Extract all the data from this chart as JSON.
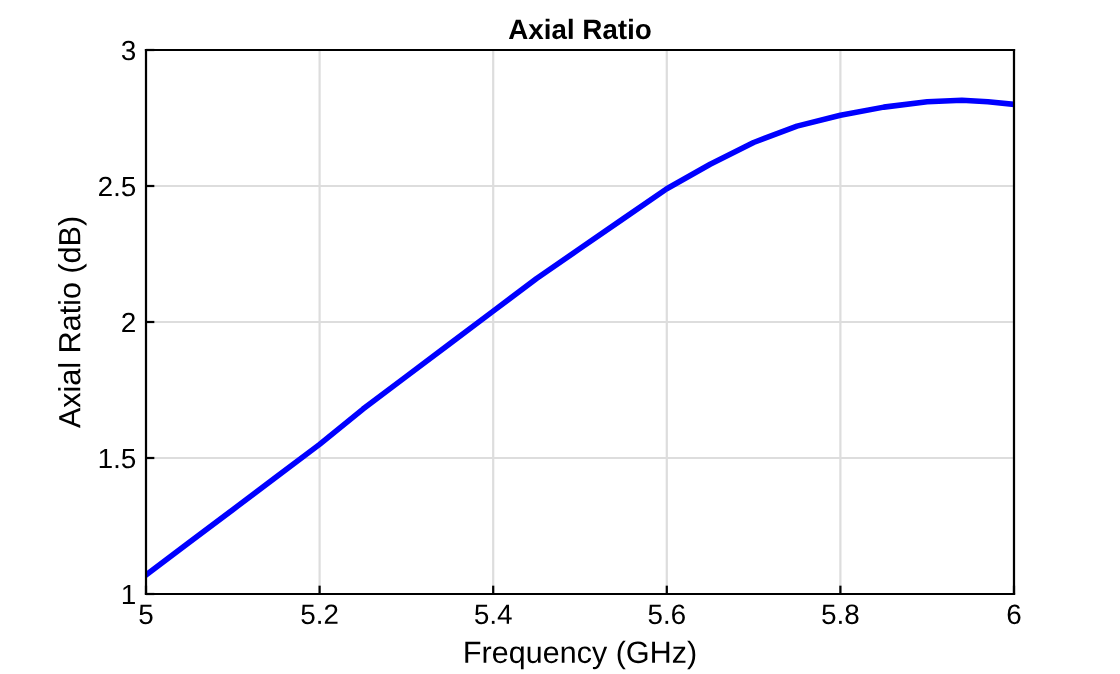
{
  "chart_data": {
    "type": "line",
    "title": "Axial Ratio",
    "xlabel": "Frequency (GHz)",
    "ylabel": "Axial Ratio (dB)",
    "x": [
      5,
      5.05,
      5.1,
      5.15,
      5.2,
      5.25,
      5.3,
      5.35,
      5.4,
      5.45,
      5.5,
      5.55,
      5.6,
      5.65,
      5.7,
      5.75,
      5.8,
      5.85,
      5.9,
      5.94,
      5.97,
      6
    ],
    "series": [
      {
        "color": "#0000ff",
        "values": [
          1.07,
          1.19,
          1.31,
          1.43,
          1.55,
          1.68,
          1.8,
          1.92,
          2.04,
          2.16,
          2.27,
          2.38,
          2.49,
          2.58,
          2.66,
          2.72,
          2.76,
          2.79,
          2.81,
          2.815,
          2.81,
          2.8
        ]
      }
    ],
    "xlim": [
      5,
      6
    ],
    "ylim": [
      1,
      3
    ],
    "xticks": [
      {
        "value": 5,
        "label": "5"
      },
      5.2,
      5.4,
      5.6,
      5.8,
      {
        "value": 6,
        "label": "6"
      }
    ],
    "yticks": [
      {
        "value": 1,
        "label": "1"
      },
      1.5,
      {
        "value": 2,
        "label": "2"
      },
      2.5,
      {
        "value": 3,
        "label": "3"
      }
    ],
    "grid": true,
    "marker": "none",
    "line_style": "solid"
  }
}
